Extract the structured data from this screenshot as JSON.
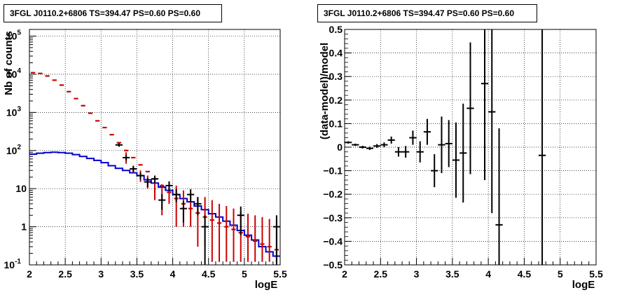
{
  "chart_data": [
    {
      "type": "step-histogram",
      "title": "3FGL J0110.2+6806 TS=394.47 PS=0.60 PS=0.60",
      "xlabel": "logE",
      "ylabel": "Nb of counts",
      "xlim": [
        2,
        5.5
      ],
      "ylim": [
        0.1,
        150000
      ],
      "yscale": "log",
      "grid": true,
      "x_ticks": [
        "2",
        "2.5",
        "3",
        "3.5",
        "4",
        "4.5",
        "5",
        "5.5"
      ],
      "y_ticks": [
        "10^-1",
        "1",
        "10",
        "10^2",
        "10^3",
        "10^4",
        "10^5"
      ],
      "bin_edges": [
        2.0,
        2.1,
        2.2,
        2.3,
        2.4,
        2.5,
        2.6,
        2.7,
        2.8,
        2.9,
        3.0,
        3.1,
        3.2,
        3.3,
        3.4,
        3.5,
        3.6,
        3.7,
        3.8,
        3.9,
        4.0,
        4.1,
        4.2,
        4.3,
        4.4,
        4.5,
        4.6,
        4.7,
        4.8,
        4.9,
        5.0,
        5.1,
        5.2,
        5.3,
        5.4,
        5.5
      ],
      "colors": {
        "data": "#000000",
        "model_total": "#cc0000",
        "model_bkg": "#0000cc"
      },
      "series": [
        {
          "values": [
            11000,
            10500,
            9000,
            7000,
            5200,
            3500,
            2300,
            1500,
            950,
            600,
            400,
            260,
            160,
            100,
            65,
            42,
            28,
            18,
            12,
            8.0,
            5.5,
            4.0,
            3.0,
            2.3,
            1.8,
            1.5,
            1.25,
            1.0,
            0.85,
            0.7,
            0.55,
            0.42,
            0.35,
            0.3,
            0.25
          ],
          "errors": [
            0,
            0,
            0,
            0,
            0,
            0,
            0,
            0,
            0,
            0,
            0,
            0,
            0,
            0,
            0,
            0,
            0,
            0,
            0,
            0,
            0,
            0,
            0,
            0,
            0,
            0,
            0,
            0,
            0,
            0,
            0,
            0,
            0,
            0,
            0
          ],
          "color": "#cc0000",
          "draw": "marks"
        },
        {
          "values": [
            80,
            85,
            88,
            90,
            88,
            85,
            78,
            70,
            62,
            55,
            48,
            40,
            34,
            30,
            26,
            22,
            17,
            14,
            11,
            9,
            7,
            5.5,
            4.5,
            3.5,
            2.8,
            2.2,
            1.8,
            1.4,
            1.1,
            0.8,
            0.6,
            0.45,
            0.3,
            0.22,
            0.17
          ],
          "color": "#0000cc",
          "draw": "step"
        }
      ],
      "data_points": [
        {
          "x": 3.25,
          "y": 140,
          "xerr": 0.05,
          "yerr_lo": 15,
          "yerr_hi": 15
        },
        {
          "x": 3.35,
          "y": 65,
          "xerr": 0.05,
          "yerr_lo": 10,
          "yerr_hi": 10
        },
        {
          "x": 3.45,
          "y": 33,
          "xerr": 0.05,
          "yerr_lo": 6,
          "yerr_hi": 6
        },
        {
          "x": 3.55,
          "y": 22,
          "xerr": 0.05,
          "yerr_lo": 4.5,
          "yerr_hi": 4.5
        },
        {
          "x": 3.65,
          "y": 15,
          "xerr": 0.05,
          "yerr_lo": 4,
          "yerr_hi": 4
        },
        {
          "x": 3.75,
          "y": 18,
          "xerr": 0.05,
          "yerr_lo": 4,
          "yerr_hi": 4
        },
        {
          "x": 3.85,
          "y": 5,
          "xerr": 0.05,
          "yerr_lo": 2.2,
          "yerr_hi": 2.2
        },
        {
          "x": 3.95,
          "y": 12,
          "xerr": 0.05,
          "yerr_lo": 3.5,
          "yerr_hi": 3.5
        },
        {
          "x": 4.05,
          "y": 7,
          "xerr": 0.05,
          "yerr_lo": 2.6,
          "yerr_hi": 2.6
        },
        {
          "x": 4.15,
          "y": 3,
          "xerr": 0.05,
          "yerr_lo": 1.7,
          "yerr_hi": 1.7
        },
        {
          "x": 4.25,
          "y": 7,
          "xerr": 0.05,
          "yerr_lo": 2.6,
          "yerr_hi": 2.6
        },
        {
          "x": 4.35,
          "y": 4,
          "xerr": 0.05,
          "yerr_lo": 2,
          "yerr_hi": 2
        },
        {
          "x": 4.45,
          "y": 1,
          "xerr": 0.05,
          "yerr_lo": 0.95,
          "yerr_hi": 1
        },
        {
          "x": 4.95,
          "y": 2,
          "xerr": 0.05,
          "yerr_lo": 1.4,
          "yerr_hi": 1.4
        },
        {
          "x": 5.45,
          "y": 1,
          "xerr": 0.05,
          "yerr_lo": 0.95,
          "yerr_hi": 1
        }
      ],
      "model_errorbars": [
        {
          "x": 3.35,
          "lo": 45,
          "hi": 90
        },
        {
          "x": 3.45,
          "lo": 25,
          "hi": 40
        },
        {
          "x": 3.55,
          "lo": 15,
          "hi": 30
        },
        {
          "x": 3.65,
          "lo": 10,
          "hi": 22
        },
        {
          "x": 3.75,
          "lo": 5,
          "hi": 16
        },
        {
          "x": 3.85,
          "lo": 2,
          "hi": 13
        },
        {
          "x": 3.95,
          "lo": 4,
          "hi": 15
        },
        {
          "x": 4.05,
          "lo": 1,
          "hi": 12
        },
        {
          "x": 4.15,
          "lo": 1,
          "hi": 9
        },
        {
          "x": 4.25,
          "lo": 1,
          "hi": 7
        },
        {
          "x": 4.35,
          "lo": 0.3,
          "hi": 6
        },
        {
          "x": 4.45,
          "lo": 0.3,
          "hi": 6
        },
        {
          "x": 4.55,
          "lo": 0.12,
          "hi": 5
        },
        {
          "x": 4.65,
          "lo": 0.12,
          "hi": 4
        },
        {
          "x": 4.75,
          "lo": 0.12,
          "hi": 3.5
        },
        {
          "x": 4.85,
          "lo": 0.12,
          "hi": 3
        },
        {
          "x": 4.95,
          "lo": 0.12,
          "hi": 2.5
        },
        {
          "x": 5.05,
          "lo": 0.12,
          "hi": 2.2
        },
        {
          "x": 5.15,
          "lo": 0.12,
          "hi": 2
        },
        {
          "x": 5.25,
          "lo": 0.12,
          "hi": 1.8
        },
        {
          "x": 5.35,
          "lo": 0.12,
          "hi": 1.6
        },
        {
          "x": 5.45,
          "lo": 0.12,
          "hi": 1.5
        }
      ]
    },
    {
      "type": "scatter",
      "title": "3FGL J0110.2+6806 TS=394.47 PS=0.60 PS=0.60",
      "xlabel": "logE",
      "ylabel": "(data-model)/model",
      "xlim": [
        2,
        5.5
      ],
      "ylim": [
        -0.5,
        0.5
      ],
      "grid": true,
      "x_ticks": [
        "2",
        "2.5",
        "3",
        "3.5",
        "4",
        "4.5",
        "5",
        "5.5"
      ],
      "y_ticks": [
        "−0.5",
        "−0.4",
        "−0.3",
        "−0.2",
        "−0.1",
        "0",
        "0.1",
        "0.2",
        "0.3",
        "0.4",
        "0.5"
      ],
      "points": [
        {
          "x": 2.05,
          "y": 0.02,
          "xerr": 0.05,
          "yerr": 0.005
        },
        {
          "x": 2.15,
          "y": 0.01,
          "xerr": 0.05,
          "yerr": 0.005
        },
        {
          "x": 2.25,
          "y": 0.0,
          "xerr": 0.05,
          "yerr": 0.006
        },
        {
          "x": 2.35,
          "y": -0.005,
          "xerr": 0.05,
          "yerr": 0.007
        },
        {
          "x": 2.45,
          "y": 0.005,
          "xerr": 0.05,
          "yerr": 0.008
        },
        {
          "x": 2.55,
          "y": 0.01,
          "xerr": 0.05,
          "yerr": 0.01
        },
        {
          "x": 2.65,
          "y": 0.03,
          "xerr": 0.05,
          "yerr": 0.015
        },
        {
          "x": 2.75,
          "y": -0.02,
          "xerr": 0.05,
          "yerr": 0.02
        },
        {
          "x": 2.85,
          "y": -0.02,
          "xerr": 0.05,
          "yerr": 0.025
        },
        {
          "x": 2.95,
          "y": 0.04,
          "xerr": 0.05,
          "yerr": 0.03
        },
        {
          "x": 3.05,
          "y": -0.02,
          "xerr": 0.05,
          "yerr": 0.045
        },
        {
          "x": 3.15,
          "y": 0.065,
          "xerr": 0.05,
          "yerr": 0.055
        },
        {
          "x": 3.25,
          "y": -0.1,
          "xerr": 0.05,
          "yerr": 0.07
        },
        {
          "x": 3.35,
          "y": 0.01,
          "xerr": 0.05,
          "yerr": 0.12
        },
        {
          "x": 3.45,
          "y": 0.015,
          "xerr": 0.05,
          "yerr": 0.1
        },
        {
          "x": 3.55,
          "y": -0.055,
          "xerr": 0.05,
          "yerr": 0.16
        },
        {
          "x": 3.65,
          "y": -0.025,
          "xerr": 0.05,
          "yerr": 0.21
        },
        {
          "x": 3.75,
          "y": 0.165,
          "xerr": 0.05,
          "yerr": 0.28
        },
        {
          "x": 3.95,
          "y": 0.27,
          "xerr": 0.05,
          "yerr": 0.41
        },
        {
          "x": 4.05,
          "y": 0.15,
          "xerr": 0.05,
          "yerr": 0.43
        },
        {
          "x": 4.15,
          "y": -0.33,
          "xerr": 0.05,
          "yerr": 0.41
        },
        {
          "x": 4.75,
          "y": -0.035,
          "xerr": 0.05,
          "yerr": 0.6
        }
      ]
    }
  ]
}
